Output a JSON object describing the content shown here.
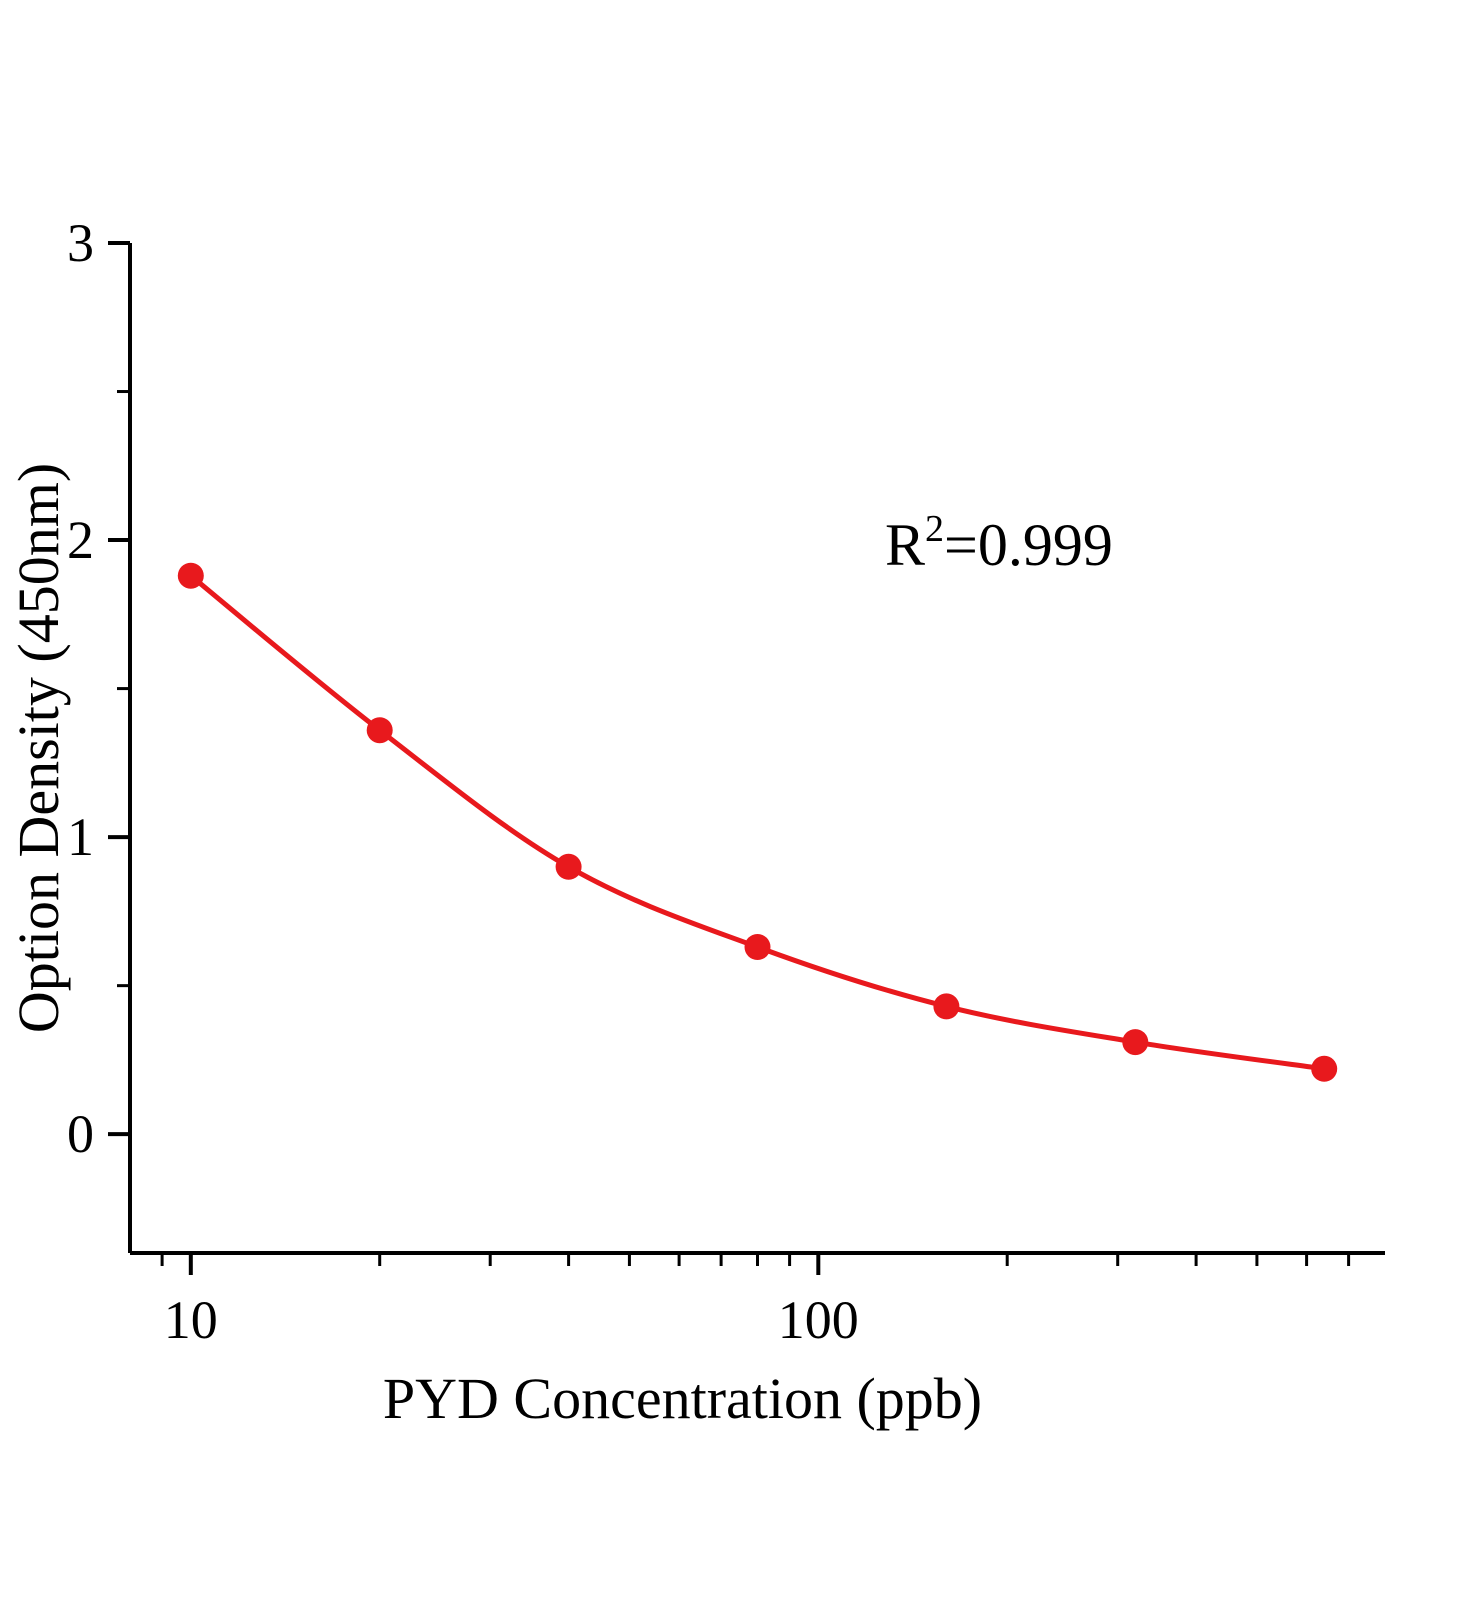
{
  "page": {
    "background": "#ffffff",
    "axis_color": "#000000"
  },
  "chart_data": {
    "type": "scatter",
    "subtype": "scatter-with-smooth-line",
    "title": "",
    "xlabel": "PYD  Concentration (ppb)",
    "ylabel": "Option Density (450nm)",
    "x_scale": "log",
    "y_scale": "linear",
    "x": [
      10,
      20,
      40,
      80,
      160,
      320,
      640
    ],
    "y": [
      1.88,
      1.36,
      0.9,
      0.63,
      0.43,
      0.31,
      0.22
    ],
    "xlim": [
      8,
      800
    ],
    "ylim": [
      -0.4,
      3
    ],
    "x_major_ticks": [
      10,
      100
    ],
    "x_tick_labels": [
      "10",
      "100"
    ],
    "y_major_ticks": [
      0,
      1,
      2,
      3
    ],
    "y_tick_labels": [
      "0",
      "1",
      "2",
      "3"
    ],
    "y_minor_ticks": [
      0.5,
      1.5,
      2.5
    ],
    "grid": false,
    "legend_position": "none",
    "annotation": {
      "base": "R",
      "sup": "2",
      "rest": "=0.999"
    },
    "series_color": "#e8191d",
    "marker": "circle",
    "marker_radius": 13,
    "line_width": 5
  }
}
